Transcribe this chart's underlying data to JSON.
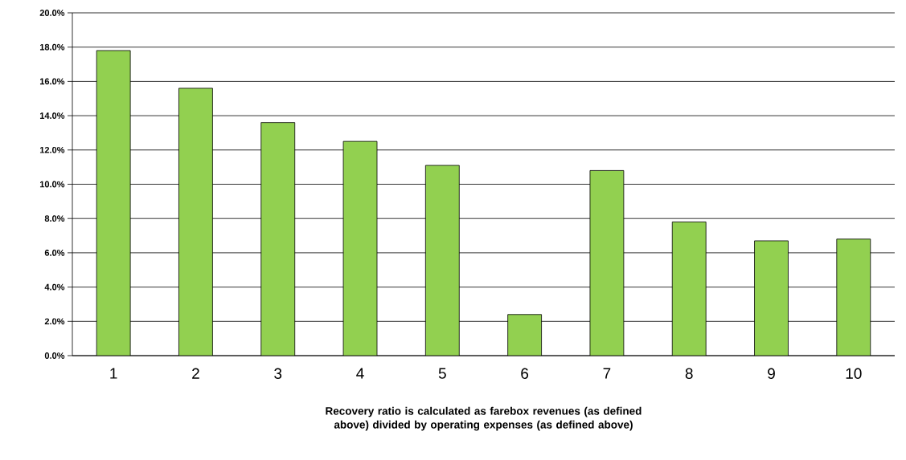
{
  "chart_data": {
    "type": "bar",
    "categories": [
      "1",
      "2",
      "3",
      "4",
      "5",
      "6",
      "7",
      "8",
      "9",
      "10"
    ],
    "values": [
      17.8,
      15.6,
      13.6,
      12.5,
      11.1,
      2.4,
      10.8,
      7.8,
      6.7,
      6.8
    ],
    "color": "#92d050",
    "ylim": [
      0,
      20
    ],
    "yticks": [
      {
        "value": 0,
        "label": "0.0%"
      },
      {
        "value": 2,
        "label": "2.0%"
      },
      {
        "value": 4,
        "label": "4.0%"
      },
      {
        "value": 6,
        "label": "6.0%"
      },
      {
        "value": 8,
        "label": "8.0%"
      },
      {
        "value": 10,
        "label": "10.0%"
      },
      {
        "value": 12,
        "label": "12.0%"
      },
      {
        "value": 14,
        "label": "14.0%"
      },
      {
        "value": 16,
        "label": "16.0%"
      },
      {
        "value": 18,
        "label": "18.0%"
      },
      {
        "value": 20,
        "label": "20.0%"
      }
    ],
    "grid": "y",
    "xlabel": "Recovery ratio is calculated as farebox revenues (as defined above) divided by operating expenses (as defined above)"
  }
}
